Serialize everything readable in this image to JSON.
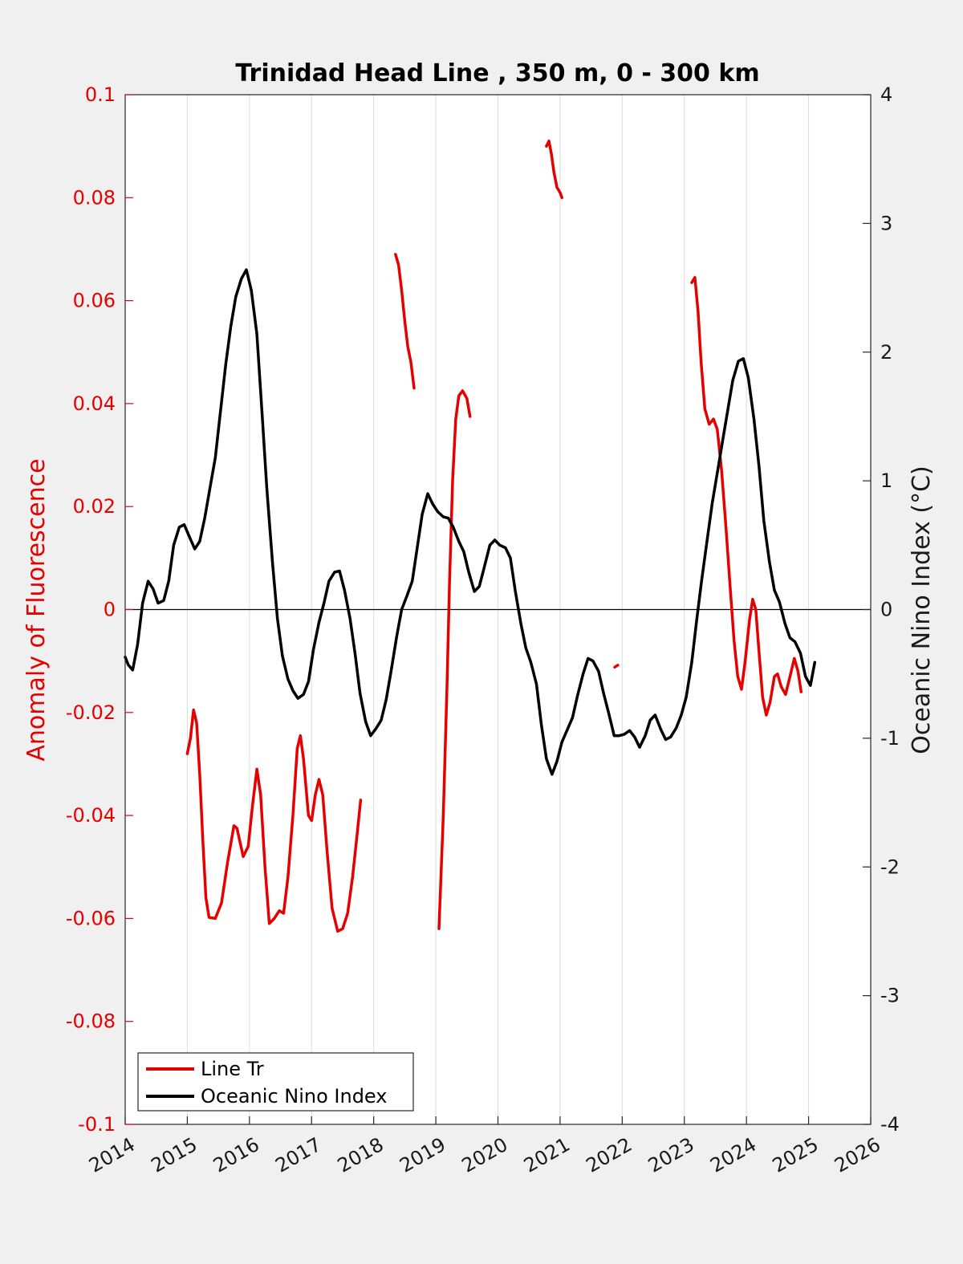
{
  "chart_data": {
    "type": "line",
    "title": "Trinidad Head Line , 350 m, 0 - 300 km",
    "ylabel": "Anomaly of Fluorescence",
    "ylabel_right": "Oceanic Nino Index (°C)",
    "xlabel": "",
    "xlim": [
      2014,
      2026
    ],
    "ylim": [
      -0.1,
      0.1
    ],
    "ylim_right": [
      -4,
      4
    ],
    "x_ticks": [
      "2014",
      "2015",
      "2016",
      "2017",
      "2018",
      "2019",
      "2020",
      "2021",
      "2022",
      "2023",
      "2024",
      "2025",
      "2026"
    ],
    "y_ticks_left": [
      "-0.1",
      "-0.08",
      "-0.06",
      "-0.04",
      "-0.02",
      "0",
      "0.02",
      "0.04",
      "0.06",
      "0.08",
      "0.1"
    ],
    "y_ticks_right": [
      "-4",
      "-3",
      "-2",
      "-1",
      "0",
      "1",
      "2",
      "3",
      "4"
    ],
    "grid": "vertical",
    "zero_line": true,
    "legend_position": "bottom-left",
    "series": [
      {
        "name": "Line Tr",
        "axis": "left",
        "color": "#e60000",
        "segments": [
          [
            [
              2015.0,
              -0.028
            ],
            [
              2015.05,
              -0.025
            ],
            [
              2015.1,
              -0.0195
            ],
            [
              2015.15,
              -0.022
            ],
            [
              2015.2,
              -0.032
            ],
            [
              2015.25,
              -0.045
            ],
            [
              2015.3,
              -0.056
            ],
            [
              2015.35,
              -0.0598
            ],
            [
              2015.45,
              -0.06
            ],
            [
              2015.55,
              -0.057
            ],
            [
              2015.65,
              -0.049
            ],
            [
              2015.75,
              -0.042
            ],
            [
              2015.8,
              -0.0425
            ],
            [
              2015.9,
              -0.048
            ],
            [
              2015.98,
              -0.046
            ],
            [
              2016.05,
              -0.038
            ],
            [
              2016.12,
              -0.031
            ],
            [
              2016.18,
              -0.036
            ],
            [
              2016.25,
              -0.05
            ],
            [
              2016.32,
              -0.061
            ],
            [
              2016.4,
              -0.06
            ],
            [
              2016.48,
              -0.0585
            ],
            [
              2016.55,
              -0.059
            ],
            [
              2016.62,
              -0.052
            ],
            [
              2016.7,
              -0.04
            ],
            [
              2016.77,
              -0.027
            ],
            [
              2016.82,
              -0.0245
            ],
            [
              2016.87,
              -0.029
            ],
            [
              2016.95,
              -0.04
            ],
            [
              2017.0,
              -0.041
            ],
            [
              2017.06,
              -0.036
            ],
            [
              2017.12,
              -0.033
            ],
            [
              2017.18,
              -0.036
            ],
            [
              2017.25,
              -0.047
            ],
            [
              2017.33,
              -0.058
            ],
            [
              2017.42,
              -0.0625
            ],
            [
              2017.5,
              -0.062
            ],
            [
              2017.58,
              -0.059
            ],
            [
              2017.66,
              -0.052
            ],
            [
              2017.73,
              -0.044
            ],
            [
              2017.79,
              -0.037
            ]
          ],
          [
            [
              2018.35,
              0.069
            ],
            [
              2018.4,
              0.067
            ],
            [
              2018.45,
              0.062
            ],
            [
              2018.5,
              0.056
            ],
            [
              2018.55,
              0.051
            ],
            [
              2018.6,
              0.048
            ],
            [
              2018.65,
              0.043
            ]
          ],
          [
            [
              2019.05,
              -0.062
            ],
            [
              2019.12,
              -0.04
            ],
            [
              2019.18,
              -0.015
            ],
            [
              2019.22,
              0.005
            ],
            [
              2019.27,
              0.025
            ],
            [
              2019.32,
              0.037
            ],
            [
              2019.37,
              0.0415
            ],
            [
              2019.43,
              0.0425
            ],
            [
              2019.5,
              0.041
            ],
            [
              2019.55,
              0.0375
            ]
          ],
          [
            [
              2020.78,
              0.09
            ],
            [
              2020.82,
              0.091
            ],
            [
              2020.86,
              0.0885
            ],
            [
              2020.9,
              0.085
            ],
            [
              2020.95,
              0.082
            ],
            [
              2021.0,
              0.081
            ],
            [
              2021.03,
              0.08
            ]
          ],
          [
            [
              2021.88,
              -0.0112
            ],
            [
              2021.93,
              -0.0108
            ]
          ],
          [
            [
              2023.12,
              0.0635
            ],
            [
              2023.17,
              0.0645
            ],
            [
              2023.22,
              0.058
            ],
            [
              2023.27,
              0.048
            ],
            [
              2023.33,
              0.039
            ],
            [
              2023.4,
              0.036
            ],
            [
              2023.47,
              0.037
            ],
            [
              2023.53,
              0.035
            ],
            [
              2023.6,
              0.027
            ],
            [
              2023.67,
              0.016
            ],
            [
              2023.74,
              0.004
            ],
            [
              2023.8,
              -0.006
            ],
            [
              2023.86,
              -0.013
            ],
            [
              2023.92,
              -0.0155
            ],
            [
              2023.98,
              -0.01
            ],
            [
              2024.05,
              -0.002
            ],
            [
              2024.1,
              0.002
            ],
            [
              2024.15,
              0.0
            ],
            [
              2024.2,
              -0.008
            ],
            [
              2024.26,
              -0.017
            ],
            [
              2024.32,
              -0.0205
            ],
            [
              2024.38,
              -0.018
            ],
            [
              2024.45,
              -0.013
            ],
            [
              2024.5,
              -0.0125
            ],
            [
              2024.56,
              -0.015
            ],
            [
              2024.63,
              -0.0165
            ],
            [
              2024.7,
              -0.013
            ],
            [
              2024.77,
              -0.0095
            ],
            [
              2024.83,
              -0.012
            ],
            [
              2024.88,
              -0.016
            ]
          ]
        ]
      },
      {
        "name": "Oceanic Nino Index",
        "axis": "right",
        "color": "#000000",
        "segments": [
          [
            [
              2014.0,
              -0.37
            ],
            [
              2014.05,
              -0.43
            ],
            [
              2014.12,
              -0.47
            ],
            [
              2014.2,
              -0.27
            ],
            [
              2014.28,
              0.05
            ],
            [
              2014.37,
              0.22
            ],
            [
              2014.45,
              0.16
            ],
            [
              2014.53,
              0.05
            ],
            [
              2014.62,
              0.07
            ],
            [
              2014.7,
              0.22
            ],
            [
              2014.78,
              0.5
            ],
            [
              2014.87,
              0.64
            ],
            [
              2014.95,
              0.66
            ],
            [
              2015.03,
              0.57
            ],
            [
              2015.12,
              0.47
            ],
            [
              2015.2,
              0.53
            ],
            [
              2015.28,
              0.71
            ],
            [
              2015.37,
              0.96
            ],
            [
              2015.45,
              1.18
            ],
            [
              2015.53,
              1.52
            ],
            [
              2015.62,
              1.91
            ],
            [
              2015.7,
              2.2
            ],
            [
              2015.78,
              2.43
            ],
            [
              2015.87,
              2.57
            ],
            [
              2015.95,
              2.64
            ],
            [
              2016.03,
              2.48
            ],
            [
              2016.12,
              2.14
            ],
            [
              2016.2,
              1.55
            ],
            [
              2016.28,
              0.94
            ],
            [
              2016.37,
              0.37
            ],
            [
              2016.45,
              -0.07
            ],
            [
              2016.53,
              -0.36
            ],
            [
              2016.62,
              -0.54
            ],
            [
              2016.7,
              -0.63
            ],
            [
              2016.78,
              -0.69
            ],
            [
              2016.87,
              -0.66
            ],
            [
              2016.95,
              -0.56
            ],
            [
              2017.03,
              -0.31
            ],
            [
              2017.12,
              -0.1
            ],
            [
              2017.2,
              0.05
            ],
            [
              2017.28,
              0.22
            ],
            [
              2017.37,
              0.29
            ],
            [
              2017.45,
              0.3
            ],
            [
              2017.53,
              0.15
            ],
            [
              2017.62,
              -0.07
            ],
            [
              2017.7,
              -0.34
            ],
            [
              2017.78,
              -0.65
            ],
            [
              2017.87,
              -0.87
            ],
            [
              2017.95,
              -0.98
            ],
            [
              2018.03,
              -0.93
            ],
            [
              2018.12,
              -0.86
            ],
            [
              2018.2,
              -0.7
            ],
            [
              2018.28,
              -0.48
            ],
            [
              2018.37,
              -0.21
            ],
            [
              2018.45,
              0.0
            ],
            [
              2018.53,
              0.1
            ],
            [
              2018.62,
              0.22
            ],
            [
              2018.7,
              0.48
            ],
            [
              2018.78,
              0.74
            ],
            [
              2018.87,
              0.9
            ],
            [
              2018.95,
              0.82
            ],
            [
              2019.03,
              0.76
            ],
            [
              2019.12,
              0.72
            ],
            [
              2019.2,
              0.71
            ],
            [
              2019.28,
              0.64
            ],
            [
              2019.37,
              0.53
            ],
            [
              2019.45,
              0.45
            ],
            [
              2019.53,
              0.29
            ],
            [
              2019.62,
              0.14
            ],
            [
              2019.7,
              0.18
            ],
            [
              2019.78,
              0.33
            ],
            [
              2019.87,
              0.5
            ],
            [
              2019.95,
              0.54
            ],
            [
              2020.03,
              0.5
            ],
            [
              2020.12,
              0.48
            ],
            [
              2020.2,
              0.4
            ],
            [
              2020.28,
              0.14
            ],
            [
              2020.37,
              -0.11
            ],
            [
              2020.45,
              -0.3
            ],
            [
              2020.53,
              -0.41
            ],
            [
              2020.62,
              -0.58
            ],
            [
              2020.7,
              -0.9
            ],
            [
              2020.78,
              -1.16
            ],
            [
              2020.87,
              -1.28
            ],
            [
              2020.95,
              -1.18
            ],
            [
              2021.03,
              -1.03
            ],
            [
              2021.12,
              -0.93
            ],
            [
              2021.2,
              -0.84
            ],
            [
              2021.28,
              -0.67
            ],
            [
              2021.37,
              -0.5
            ],
            [
              2021.45,
              -0.38
            ],
            [
              2021.53,
              -0.4
            ],
            [
              2021.62,
              -0.48
            ],
            [
              2021.7,
              -0.65
            ],
            [
              2021.78,
              -0.8
            ],
            [
              2021.87,
              -0.98
            ],
            [
              2021.95,
              -0.98
            ],
            [
              2022.03,
              -0.97
            ],
            [
              2022.12,
              -0.94
            ],
            [
              2022.2,
              -0.99
            ],
            [
              2022.28,
              -1.07
            ],
            [
              2022.37,
              -0.98
            ],
            [
              2022.45,
              -0.86
            ],
            [
              2022.53,
              -0.82
            ],
            [
              2022.62,
              -0.93
            ],
            [
              2022.7,
              -1.01
            ],
            [
              2022.78,
              -0.99
            ],
            [
              2022.87,
              -0.92
            ],
            [
              2022.95,
              -0.82
            ],
            [
              2023.03,
              -0.68
            ],
            [
              2023.12,
              -0.41
            ],
            [
              2023.2,
              -0.08
            ],
            [
              2023.28,
              0.23
            ],
            [
              2023.37,
              0.55
            ],
            [
              2023.45,
              0.83
            ],
            [
              2023.53,
              1.06
            ],
            [
              2023.62,
              1.32
            ],
            [
              2023.7,
              1.55
            ],
            [
              2023.78,
              1.78
            ],
            [
              2023.87,
              1.93
            ],
            [
              2023.95,
              1.95
            ],
            [
              2024.03,
              1.8
            ],
            [
              2024.12,
              1.48
            ],
            [
              2024.2,
              1.12
            ],
            [
              2024.28,
              0.69
            ],
            [
              2024.37,
              0.37
            ],
            [
              2024.45,
              0.15
            ],
            [
              2024.53,
              0.06
            ],
            [
              2024.62,
              -0.11
            ],
            [
              2024.7,
              -0.22
            ],
            [
              2024.78,
              -0.25
            ],
            [
              2024.87,
              -0.34
            ],
            [
              2024.95,
              -0.52
            ],
            [
              2025.03,
              -0.59
            ],
            [
              2025.1,
              -0.41
            ]
          ]
        ]
      }
    ]
  }
}
